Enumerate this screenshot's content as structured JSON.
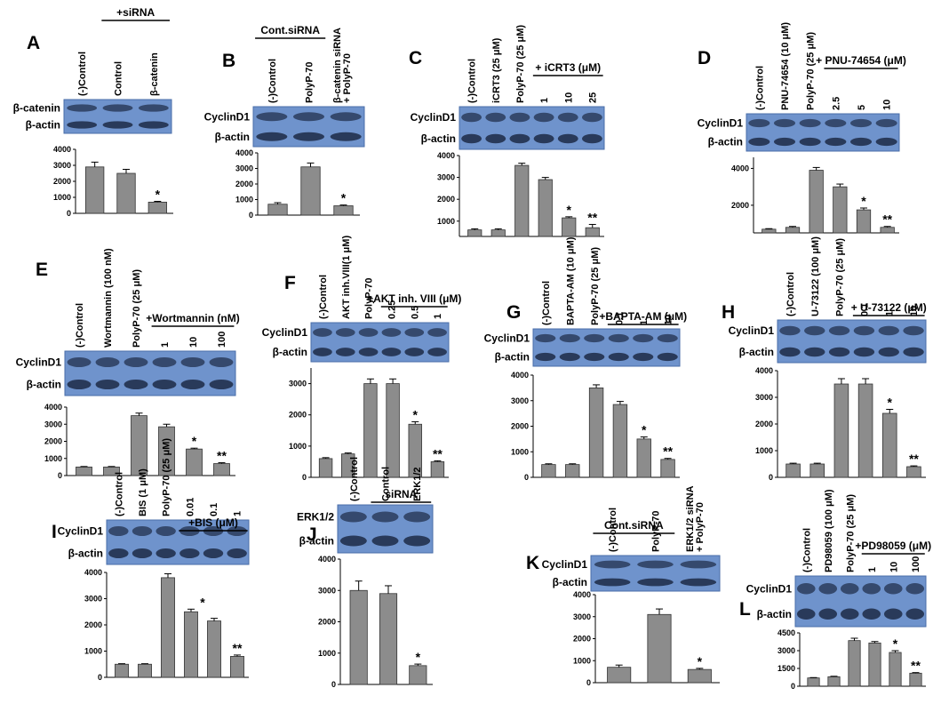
{
  "chart_data": [
    {
      "type": "bar",
      "title": "A",
      "group_label": "+siRNA",
      "group_lanes": [
        1,
        2
      ],
      "blot_labels": [
        "β-catenin",
        "β-actin"
      ],
      "categories": [
        "(-)Control",
        "Control",
        "β-catenin"
      ],
      "values": [
        2900,
        2500,
        700
      ],
      "errors": [
        300,
        250,
        50
      ],
      "significance": [
        null,
        null,
        "*"
      ],
      "color": "#8c8c8c",
      "ylim": [
        0,
        4000
      ],
      "yticks": [
        0,
        1000,
        2000,
        3000,
        4000
      ]
    },
    {
      "type": "bar",
      "title": "B",
      "group_label": "Cont.siRNA",
      "group_lanes": [
        0,
        1
      ],
      "blot_labels": [
        "CyclinD1",
        "β-actin"
      ],
      "categories": [
        "(-)Control",
        "PolyP-70",
        "β-catenin siRNA + PolyP-70"
      ],
      "values": [
        700,
        3100,
        600
      ],
      "errors": [
        100,
        250,
        50
      ],
      "significance": [
        null,
        null,
        "*"
      ],
      "color": "#8c8c8c",
      "ylim": [
        0,
        4000
      ],
      "yticks": [
        0,
        1000,
        2000,
        3000,
        4000
      ]
    },
    {
      "type": "bar",
      "title": "C",
      "group_label": "+ iCRT3 (μM)",
      "group_lanes": [
        3,
        5
      ],
      "blot_labels": [
        "CyclinD1",
        "β-actin"
      ],
      "categories": [
        "(-)Control",
        "iCRT3 (25 μM)",
        "PolyP-70 (25 μM)",
        "1",
        "10",
        "25"
      ],
      "values": [
        600,
        600,
        3550,
        2900,
        1150,
        700
      ],
      "errors": [
        50,
        50,
        100,
        100,
        50,
        150
      ],
      "significance": [
        null,
        null,
        null,
        null,
        "*",
        "**"
      ],
      "color": "#8c8c8c",
      "ylim": [
        300,
        4000
      ],
      "yticks": [
        1000,
        2000,
        3000,
        4000
      ]
    },
    {
      "type": "bar",
      "title": "D",
      "group_label": "+ PNU-74654 (μM)",
      "group_lanes": [
        3,
        5
      ],
      "blot_labels": [
        "CyclinD1",
        "β-actin"
      ],
      "categories": [
        "(-)Control",
        "PNU-74654 (10 μM)",
        "PolyP-70 (25 μM)",
        "2.5",
        "5",
        "10"
      ],
      "values": [
        700,
        800,
        3900,
        3000,
        1750,
        800
      ],
      "errors": [
        30,
        50,
        150,
        150,
        100,
        50
      ],
      "significance": [
        null,
        null,
        null,
        null,
        "*",
        "**"
      ],
      "color": "#8c8c8c",
      "ylim": [
        500,
        4600
      ],
      "yticks": [
        2000,
        4000
      ]
    },
    {
      "type": "bar",
      "title": "E",
      "group_label": "+Wortmannin (nM)",
      "group_lanes": [
        3,
        5
      ],
      "blot_labels": [
        "CyclinD1",
        "β-actin"
      ],
      "categories": [
        "(-)Control",
        "Wortmannin (100 nM)",
        "PolyP-70 (25 μM)",
        "1",
        "10",
        "100"
      ],
      "values": [
        500,
        500,
        3500,
        2850,
        1550,
        700
      ],
      "errors": [
        30,
        30,
        150,
        150,
        50,
        50
      ],
      "significance": [
        null,
        null,
        null,
        null,
        "*",
        "**"
      ],
      "color": "#8c8c8c",
      "ylim": [
        0,
        4000
      ],
      "yticks": [
        0,
        1000,
        2000,
        3000,
        4000
      ]
    },
    {
      "type": "bar",
      "title": "F",
      "group_label": "+AKT inh. VIII (μM)",
      "group_lanes": [
        3,
        5
      ],
      "blot_labels": [
        "CyclinD1",
        "β-actin"
      ],
      "categories": [
        "(-)Control",
        "AKT inh.VIII(1 μM)",
        "PolyP-70",
        "0.25",
        "0.5",
        "1"
      ],
      "values": [
        600,
        750,
        3000,
        3000,
        1700,
        500
      ],
      "errors": [
        30,
        30,
        150,
        150,
        80,
        30
      ],
      "significance": [
        null,
        null,
        null,
        null,
        "*",
        "**"
      ],
      "color": "#8c8c8c",
      "ylim": [
        0,
        3500
      ],
      "yticks": [
        0,
        1000,
        2000,
        3000
      ]
    },
    {
      "type": "bar",
      "title": "G",
      "group_label": "+BAPTA-AM (μM)",
      "group_lanes": [
        3,
        5
      ],
      "blot_labels": [
        "CyclinD1",
        "β-actin"
      ],
      "categories": [
        "(-)Control",
        "BAPTA-AM (10 μM)",
        "PolyP-70 (25 μM)",
        "0.1",
        "1",
        "10"
      ],
      "values": [
        500,
        500,
        3500,
        2850,
        1500,
        700
      ],
      "errors": [
        30,
        30,
        120,
        120,
        80,
        40
      ],
      "significance": [
        null,
        null,
        null,
        null,
        "*",
        "**"
      ],
      "color": "#8c8c8c",
      "ylim": [
        0,
        4000
      ],
      "yticks": [
        0,
        1000,
        2000,
        3000,
        4000
      ]
    },
    {
      "type": "bar",
      "title": "H",
      "group_label": "+ U-73122 (μM)",
      "group_lanes": [
        3,
        5
      ],
      "blot_labels": [
        "CyclinD1",
        "β-actin"
      ],
      "categories": [
        "(-)Control",
        "U-73122 (100 μM)",
        "PolyP-70 (25 μM)",
        "0.1",
        "1",
        "10"
      ],
      "values": [
        500,
        500,
        3500,
        3500,
        2400,
        400
      ],
      "errors": [
        30,
        30,
        200,
        200,
        150,
        30
      ],
      "significance": [
        null,
        null,
        null,
        null,
        "*",
        "**"
      ],
      "color": "#8c8c8c",
      "ylim": [
        0,
        4000
      ],
      "yticks": [
        0,
        1000,
        2000,
        3000,
        4000
      ]
    },
    {
      "type": "bar",
      "title": "I",
      "group_label": "+BIS (μM)",
      "group_lanes": [
        3,
        5
      ],
      "blot_labels": [
        "CyclinD1",
        "β-actin"
      ],
      "categories": [
        "(-)Control",
        "BIS (1 μM)",
        "PolyP-70 (25 μM)",
        "0.01",
        "0.1",
        "1"
      ],
      "values": [
        500,
        500,
        3800,
        2500,
        2150,
        800
      ],
      "errors": [
        20,
        20,
        150,
        100,
        100,
        50
      ],
      "significance": [
        null,
        null,
        null,
        "*",
        null,
        "**"
      ],
      "color": "#8c8c8c",
      "ylim": [
        0,
        4000
      ],
      "yticks": [
        0,
        1000,
        2000,
        3000,
        4000
      ]
    },
    {
      "type": "bar",
      "title": "J",
      "group_label": "siRNA",
      "group_lanes": [
        1,
        2
      ],
      "blot_labels": [
        "ERK1/2",
        "β-actin"
      ],
      "categories": [
        "(-)Control",
        "Control",
        "ERK1/2"
      ],
      "values": [
        3000,
        2900,
        600
      ],
      "errors": [
        300,
        250,
        50
      ],
      "significance": [
        null,
        null,
        "*"
      ],
      "color": "#8c8c8c",
      "ylim": [
        0,
        4000
      ],
      "yticks": [
        0,
        1000,
        2000,
        3000,
        4000
      ]
    },
    {
      "type": "bar",
      "title": "K",
      "group_label": "Cont.siRNA",
      "group_lanes": [
        0,
        1
      ],
      "blot_labels": [
        "CyclinD1",
        "β-actin"
      ],
      "categories": [
        "(-)Control",
        "PolyP-70",
        "ERK1/2 siRNA + PolyP-70"
      ],
      "values": [
        700,
        3100,
        600
      ],
      "errors": [
        100,
        250,
        50
      ],
      "significance": [
        null,
        null,
        "*"
      ],
      "color": "#8c8c8c",
      "ylim": [
        0,
        4000
      ],
      "yticks": [
        0,
        1000,
        2000,
        3000,
        4000
      ]
    },
    {
      "type": "bar",
      "title": "L",
      "group_label": "+PD98059 (μM)",
      "group_lanes": [
        3,
        5
      ],
      "blot_labels": [
        "CyclinD1",
        "β-actin"
      ],
      "categories": [
        "(-)Control",
        "PD98059 (100 μM)",
        "PolyP-70 (25 μM)",
        "1",
        "10",
        "100"
      ],
      "values": [
        700,
        800,
        3850,
        3650,
        2850,
        1100
      ],
      "errors": [
        30,
        40,
        200,
        120,
        150,
        50
      ],
      "significance": [
        null,
        null,
        null,
        null,
        "*",
        "**"
      ],
      "color": "#8c8c8c",
      "ylim": [
        0,
        4500
      ],
      "yticks": [
        0,
        1500,
        3000,
        4500
      ]
    }
  ]
}
